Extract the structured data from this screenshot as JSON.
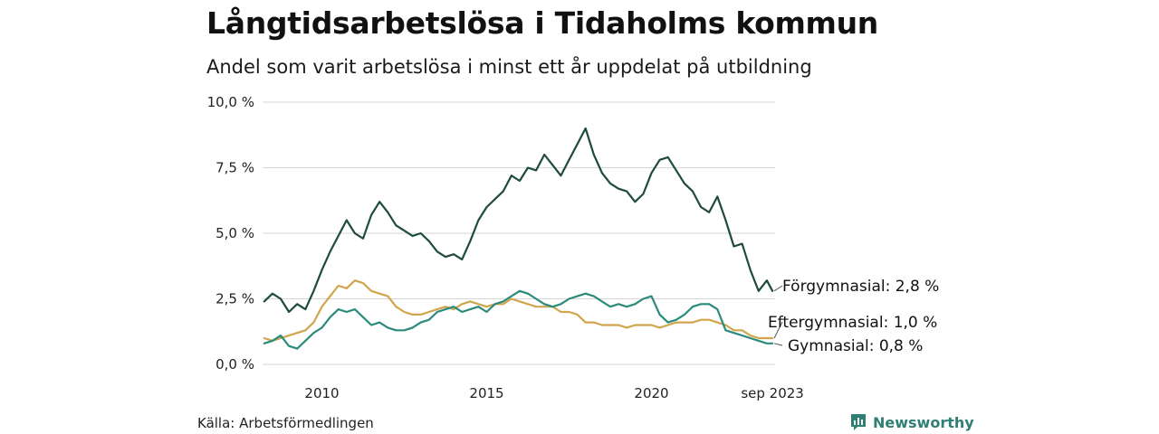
{
  "chart_data": {
    "type": "line",
    "title": "Långtidsarbetslösa i Tidaholms kommun",
    "subtitle": "Andel som varit arbetslösa i minst ett år uppdelat på utbildning",
    "xlabel": "",
    "ylabel": "",
    "ylim": [
      0,
      10
    ],
    "xlim": [
      2008.2,
      2023.75
    ],
    "y_ticks": [
      {
        "value": 0,
        "label": "0,0 %"
      },
      {
        "value": 2.5,
        "label": "2,5 %"
      },
      {
        "value": 5,
        "label": "5,0 %"
      },
      {
        "value": 7.5,
        "label": "7,5 %"
      },
      {
        "value": 10,
        "label": "10,0 %"
      }
    ],
    "x_ticks": [
      {
        "value": 2010,
        "label": "2010"
      },
      {
        "value": 2015,
        "label": "2015"
      },
      {
        "value": 2020,
        "label": "2020"
      },
      {
        "value": 2023.67,
        "label": "sep 2023"
      }
    ],
    "grid": true,
    "series": [
      {
        "name": "Förgymnasial",
        "end_label": "Förgymnasial: 2,8 %",
        "color": "#1f4a40",
        "x": [
          2008.25,
          2008.5,
          2008.75,
          2009.0,
          2009.25,
          2009.5,
          2009.75,
          2010.0,
          2010.25,
          2010.5,
          2010.75,
          2011.0,
          2011.25,
          2011.5,
          2011.75,
          2012.0,
          2012.25,
          2012.5,
          2012.75,
          2013.0,
          2013.25,
          2013.5,
          2013.75,
          2014.0,
          2014.25,
          2014.5,
          2014.75,
          2015.0,
          2015.25,
          2015.5,
          2015.75,
          2016.0,
          2016.25,
          2016.5,
          2016.75,
          2017.0,
          2017.25,
          2017.5,
          2017.75,
          2018.0,
          2018.25,
          2018.5,
          2018.75,
          2019.0,
          2019.25,
          2019.5,
          2019.75,
          2020.0,
          2020.25,
          2020.5,
          2020.75,
          2021.0,
          2021.25,
          2021.5,
          2021.75,
          2022.0,
          2022.25,
          2022.5,
          2022.75,
          2023.0,
          2023.25,
          2023.5,
          2023.67
        ],
        "values": [
          2.4,
          2.7,
          2.5,
          2.0,
          2.3,
          2.1,
          2.8,
          3.6,
          4.3,
          4.9,
          5.5,
          5.0,
          4.8,
          5.7,
          6.2,
          5.8,
          5.3,
          5.1,
          4.9,
          5.0,
          4.7,
          4.3,
          4.1,
          4.2,
          4.0,
          4.7,
          5.5,
          6.0,
          6.3,
          6.6,
          7.2,
          7.0,
          7.5,
          7.4,
          8.0,
          7.6,
          7.2,
          7.8,
          8.4,
          9.0,
          8.0,
          7.3,
          6.9,
          6.7,
          6.6,
          6.2,
          6.5,
          7.3,
          7.8,
          7.9,
          7.4,
          6.9,
          6.6,
          6.0,
          5.8,
          6.4,
          5.5,
          4.5,
          4.6,
          3.6,
          2.8,
          3.2,
          2.8
        ]
      },
      {
        "name": "Eftergymnasial",
        "end_label": "Eftergymnasial: 1,0 %",
        "color": "#d0a54c",
        "x": [
          2008.25,
          2008.5,
          2008.75,
          2009.0,
          2009.25,
          2009.5,
          2009.75,
          2010.0,
          2010.25,
          2010.5,
          2010.75,
          2011.0,
          2011.25,
          2011.5,
          2011.75,
          2012.0,
          2012.25,
          2012.5,
          2012.75,
          2013.0,
          2013.25,
          2013.5,
          2013.75,
          2014.0,
          2014.25,
          2014.5,
          2014.75,
          2015.0,
          2015.25,
          2015.5,
          2015.75,
          2016.0,
          2016.25,
          2016.5,
          2016.75,
          2017.0,
          2017.25,
          2017.5,
          2017.75,
          2018.0,
          2018.25,
          2018.5,
          2018.75,
          2019.0,
          2019.25,
          2019.5,
          2019.75,
          2020.0,
          2020.25,
          2020.5,
          2020.75,
          2021.0,
          2021.25,
          2021.5,
          2021.75,
          2022.0,
          2022.25,
          2022.5,
          2022.75,
          2023.0,
          2023.25,
          2023.5,
          2023.67
        ],
        "values": [
          1.0,
          0.9,
          1.0,
          1.1,
          1.2,
          1.3,
          1.6,
          2.2,
          2.6,
          3.0,
          2.9,
          3.2,
          3.1,
          2.8,
          2.7,
          2.6,
          2.2,
          2.0,
          1.9,
          1.9,
          2.0,
          2.1,
          2.2,
          2.1,
          2.3,
          2.4,
          2.3,
          2.2,
          2.3,
          2.3,
          2.5,
          2.4,
          2.3,
          2.2,
          2.2,
          2.2,
          2.0,
          2.0,
          1.9,
          1.6,
          1.6,
          1.5,
          1.5,
          1.5,
          1.4,
          1.5,
          1.5,
          1.5,
          1.4,
          1.5,
          1.6,
          1.6,
          1.6,
          1.7,
          1.7,
          1.6,
          1.5,
          1.3,
          1.3,
          1.1,
          1.0,
          1.0,
          1.0
        ]
      },
      {
        "name": "Gymnasial",
        "end_label": "Gymnasial: 0,8 %",
        "color": "#2a8a7c",
        "x": [
          2008.25,
          2008.5,
          2008.75,
          2009.0,
          2009.25,
          2009.5,
          2009.75,
          2010.0,
          2010.25,
          2010.5,
          2010.75,
          2011.0,
          2011.25,
          2011.5,
          2011.75,
          2012.0,
          2012.25,
          2012.5,
          2012.75,
          2013.0,
          2013.25,
          2013.5,
          2013.75,
          2014.0,
          2014.25,
          2014.5,
          2014.75,
          2015.0,
          2015.25,
          2015.5,
          2015.75,
          2016.0,
          2016.25,
          2016.5,
          2016.75,
          2017.0,
          2017.25,
          2017.5,
          2017.75,
          2018.0,
          2018.25,
          2018.5,
          2018.75,
          2019.0,
          2019.25,
          2019.5,
          2019.75,
          2020.0,
          2020.25,
          2020.5,
          2020.75,
          2021.0,
          2021.25,
          2021.5,
          2021.75,
          2022.0,
          2022.25,
          2022.5,
          2022.75,
          2023.0,
          2023.25,
          2023.5,
          2023.67
        ],
        "values": [
          0.8,
          0.9,
          1.1,
          0.7,
          0.6,
          0.9,
          1.2,
          1.4,
          1.8,
          2.1,
          2.0,
          2.1,
          1.8,
          1.5,
          1.6,
          1.4,
          1.3,
          1.3,
          1.4,
          1.6,
          1.7,
          2.0,
          2.1,
          2.2,
          2.0,
          2.1,
          2.2,
          2.0,
          2.3,
          2.4,
          2.6,
          2.8,
          2.7,
          2.5,
          2.3,
          2.2,
          2.3,
          2.5,
          2.6,
          2.7,
          2.6,
          2.4,
          2.2,
          2.3,
          2.2,
          2.3,
          2.5,
          2.6,
          1.9,
          1.6,
          1.7,
          1.9,
          2.2,
          2.3,
          2.3,
          2.1,
          1.3,
          1.2,
          1.1,
          1.0,
          0.9,
          0.8,
          0.8
        ]
      }
    ]
  },
  "footer": {
    "source": "Källa: Arbetsförmedlingen",
    "brand": "Newsworthy"
  },
  "colors": {
    "grid": "#d6d6d6",
    "brand": "#2f7f74"
  }
}
